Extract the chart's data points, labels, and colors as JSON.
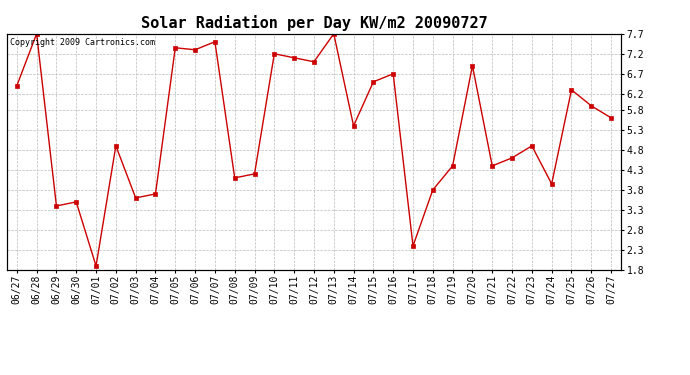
{
  "title": "Solar Radiation per Day KW/m2 20090727",
  "copyright": "Copyright 2009 Cartronics.com",
  "labels": [
    "06/27",
    "06/28",
    "06/29",
    "06/30",
    "07/01",
    "07/02",
    "07/03",
    "07/04",
    "07/05",
    "07/06",
    "07/07",
    "07/08",
    "07/09",
    "07/10",
    "07/11",
    "07/12",
    "07/13",
    "07/14",
    "07/15",
    "07/16",
    "07/17",
    "07/18",
    "07/19",
    "07/20",
    "07/21",
    "07/22",
    "07/23",
    "07/24",
    "07/25",
    "07/26",
    "07/27"
  ],
  "values": [
    6.4,
    7.7,
    3.4,
    3.5,
    1.9,
    4.9,
    3.6,
    3.7,
    7.35,
    7.3,
    7.5,
    4.1,
    4.2,
    7.2,
    7.1,
    7.0,
    7.7,
    5.4,
    6.5,
    6.7,
    2.4,
    3.8,
    4.4,
    6.9,
    4.4,
    4.6,
    4.9,
    3.95,
    6.3,
    5.9,
    5.6
  ],
  "line_color": "#cc0000",
  "marker_color": "#cc0000",
  "bg_color": "#ffffff",
  "grid_color": "#bbbbbb",
  "ylim": [
    1.8,
    7.7
  ],
  "yticks": [
    1.8,
    2.3,
    2.8,
    3.3,
    3.8,
    4.3,
    4.8,
    5.3,
    5.8,
    6.2,
    6.7,
    7.2,
    7.7
  ],
  "title_fontsize": 11,
  "tick_fontsize": 7,
  "copyright_fontsize": 6
}
